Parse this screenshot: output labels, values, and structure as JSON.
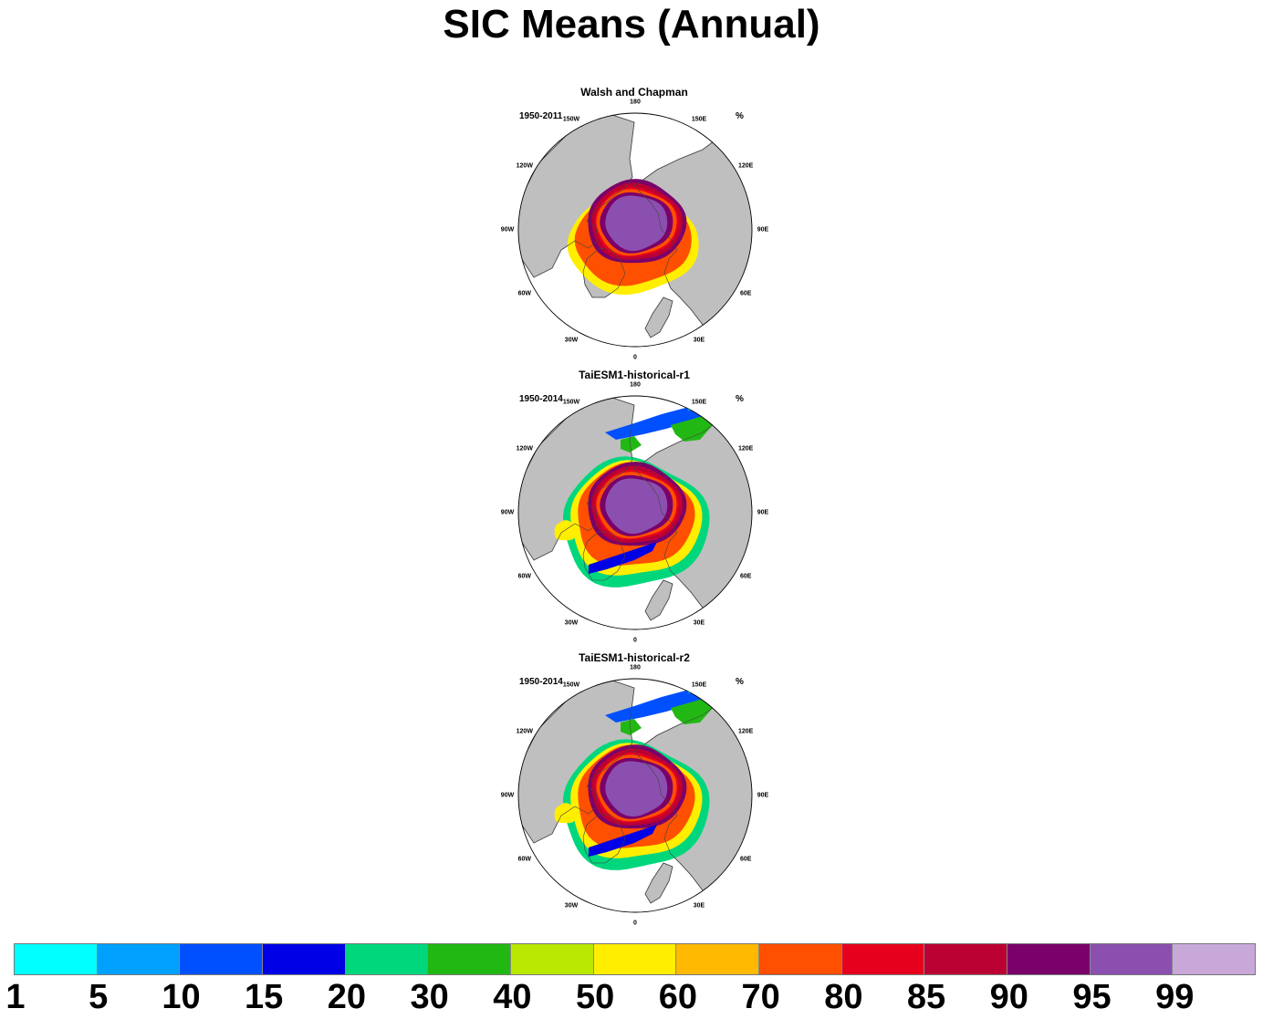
{
  "title": "SIC Means (Annual)",
  "units": "%",
  "panels": [
    {
      "name": "Walsh and Chapman",
      "period": "1950-2011",
      "model": false
    },
    {
      "name": "TaiESM1-historical-r1",
      "period": "1950-2014",
      "model": true
    },
    {
      "name": "TaiESM1-historical-r2",
      "period": "1950-2014",
      "model": true
    }
  ],
  "longitude_labels": [
    "180",
    "150E",
    "120E",
    "90E",
    "60E",
    "30E",
    "0",
    "30W",
    "60W",
    "90W",
    "120W",
    "150W"
  ],
  "colorbar": {
    "levels": [
      "1",
      "5",
      "10",
      "15",
      "20",
      "30",
      "40",
      "50",
      "60",
      "70",
      "80",
      "85",
      "90",
      "95",
      "99"
    ],
    "colors": [
      "#00ffff",
      "#00a0ff",
      "#0050ff",
      "#0000e6",
      "#00d77d",
      "#22b814",
      "#bbe800",
      "#ffee00",
      "#ffb900",
      "#ff4f00",
      "#e6001e",
      "#bb0033",
      "#7a006a",
      "#8b4fb0",
      "#c8a8d9"
    ]
  },
  "map_colors": {
    "land": "#bfbfbf",
    "ocean": "#ffffff",
    "coast": "#444444"
  }
}
